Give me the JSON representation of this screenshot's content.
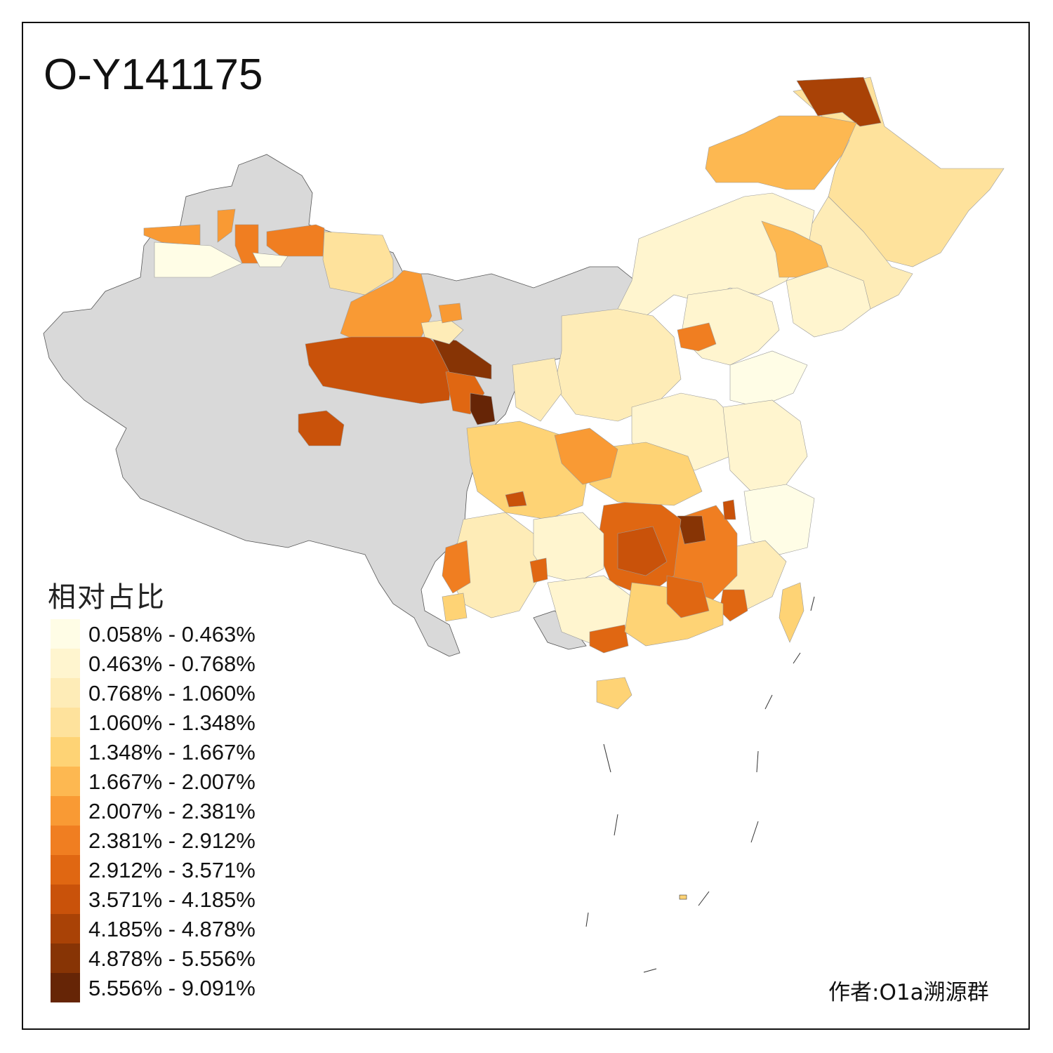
{
  "map": {
    "title": "O-Y141175",
    "legend_title": "相对占比",
    "legend": [
      {
        "label": "0.058% - 0.463%",
        "color": "#FFFDE6"
      },
      {
        "label": "0.463% - 0.768%",
        "color": "#FFF5CF"
      },
      {
        "label": "0.768% - 1.060%",
        "color": "#FEECB7"
      },
      {
        "label": "1.060% - 1.348%",
        "color": "#FEE29C"
      },
      {
        "label": "1.348% - 1.667%",
        "color": "#FED375"
      },
      {
        "label": "1.667% - 2.007%",
        "color": "#FDB851"
      },
      {
        "label": "2.007% - 2.381%",
        "color": "#F99A34"
      },
      {
        "label": "2.381% - 2.912%",
        "color": "#F07E21"
      },
      {
        "label": "2.912% - 3.571%",
        "color": "#E06712"
      },
      {
        "label": "3.571% - 4.185%",
        "color": "#C9520A"
      },
      {
        "label": "4.185% - 4.878%",
        "color": "#A94206"
      },
      {
        "label": "4.878% - 5.556%",
        "color": "#873405"
      },
      {
        "label": "5.556% - 9.091%",
        "color": "#662506"
      }
    ],
    "no_data_color": "#D9D9D9",
    "author": "作者:O1a溯源群"
  }
}
